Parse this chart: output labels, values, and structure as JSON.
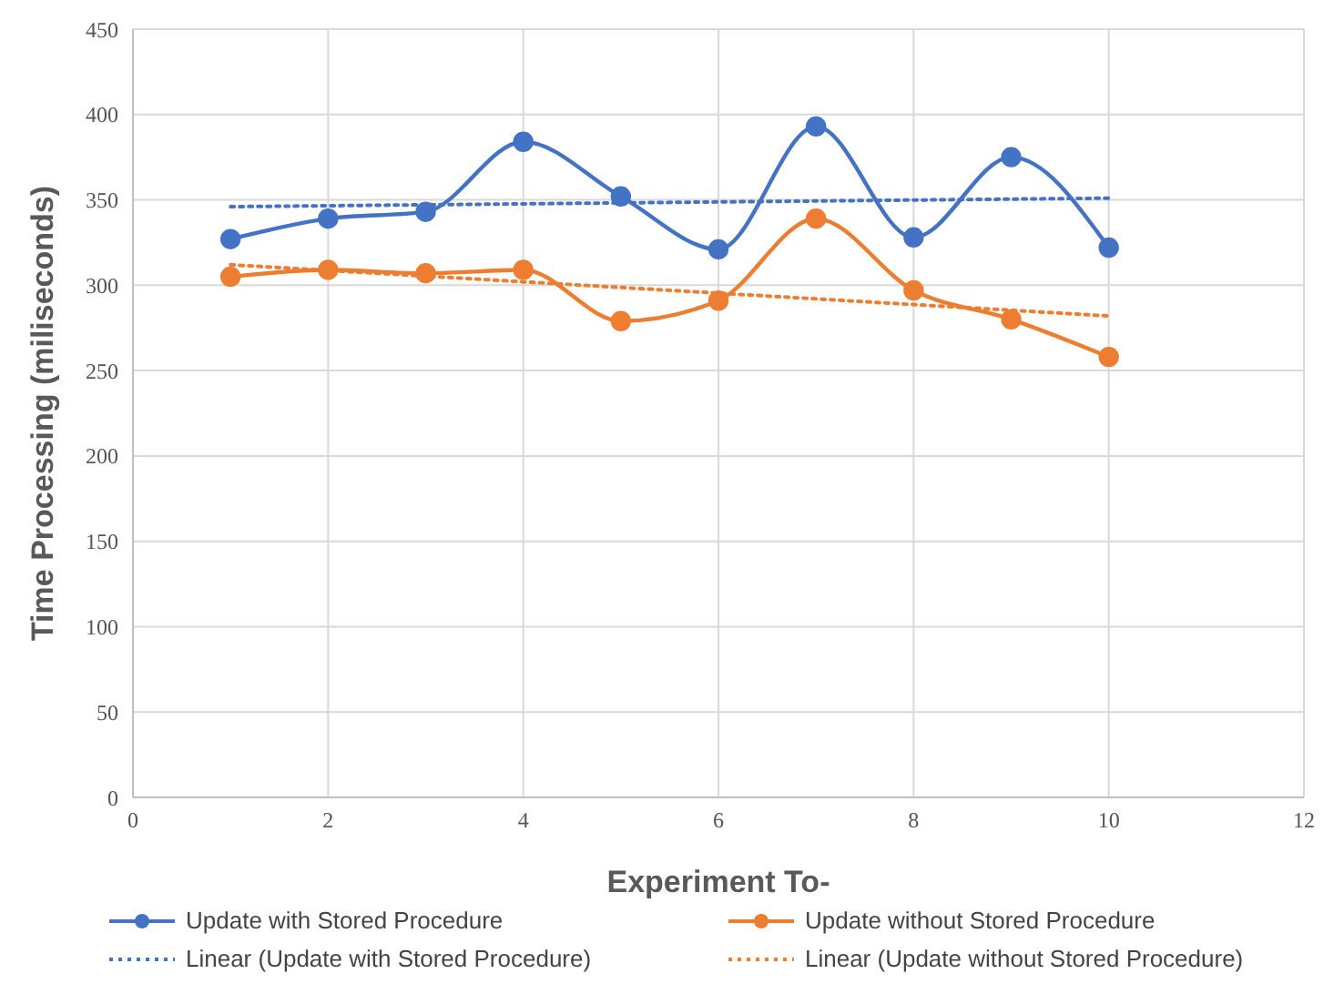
{
  "chart_data": {
    "type": "line",
    "xlabel": "Experiment To-",
    "ylabel": "Time Processing (miliseconds)",
    "xlim": [
      0,
      12
    ],
    "xticks": [
      0,
      2,
      4,
      6,
      8,
      10,
      12
    ],
    "ylim": [
      0,
      450
    ],
    "yticks": [
      0,
      50,
      100,
      150,
      200,
      250,
      300,
      350,
      400,
      450
    ],
    "grid": true,
    "legend": "bottom",
    "marker": "circle",
    "line_style": "solid",
    "series": [
      {
        "name": "Update with Stored Procedure",
        "color": "#4472c4",
        "x": [
          1,
          2,
          3,
          4,
          5,
          6,
          7,
          8,
          9,
          10
        ],
        "values": [
          327,
          339,
          343,
          384,
          352,
          321,
          393,
          328,
          375,
          322
        ]
      },
      {
        "name": "Update without Stored Procedure",
        "color": "#ed7d31",
        "x": [
          1,
          2,
          3,
          4,
          5,
          6,
          7,
          8,
          9,
          10
        ],
        "values": [
          305,
          309,
          307,
          309,
          279,
          291,
          339,
          297,
          280,
          258
        ]
      },
      {
        "name": "Linear (Update with Stored Procedure)",
        "color": "#4472c4",
        "type": "line",
        "marker": "none",
        "line_style": "dotted",
        "x": [
          1,
          10
        ],
        "values": [
          346,
          351
        ]
      },
      {
        "name": "Linear (Update without Stored Procedure)",
        "color": "#ed7d31",
        "type": "line",
        "marker": "none",
        "line_style": "dotted",
        "x": [
          1,
          10
        ],
        "values": [
          312,
          282
        ]
      }
    ]
  }
}
